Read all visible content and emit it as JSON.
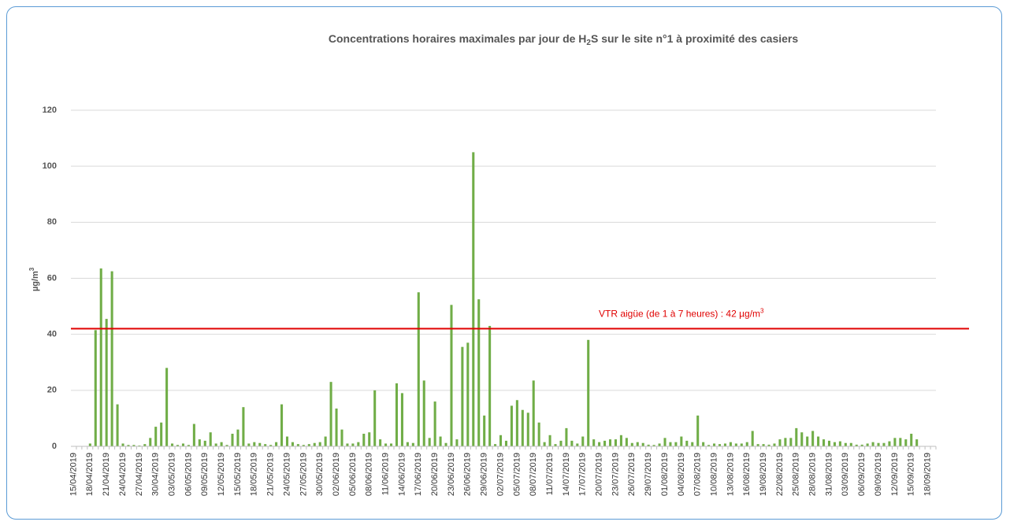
{
  "chart_data": {
    "type": "bar",
    "title_parts": [
      "Concentrations  horaires maximales par jour de H",
      "2",
      "S sur le site n°1 à proximité des casiers"
    ],
    "y_label_parts": [
      "µg/m",
      "3"
    ],
    "categories": [
      "15/04/2019",
      null,
      null,
      "18/04/2019",
      null,
      null,
      "21/04/2019",
      null,
      null,
      "24/04/2019",
      null,
      null,
      "27/04/2019",
      null,
      null,
      "30/04/2019",
      null,
      null,
      "03/05/2019",
      null,
      null,
      "06/05/2019",
      null,
      null,
      "09/05/2019",
      null,
      null,
      "12/05/2019",
      null,
      null,
      "15/05/2019",
      null,
      null,
      "18/05/2019",
      null,
      null,
      "21/05/2019",
      null,
      null,
      "24/05/2019",
      null,
      null,
      "27/05/2019",
      null,
      null,
      "30/05/2019",
      null,
      null,
      "02/06/2019",
      null,
      null,
      "05/06/2019",
      null,
      null,
      "08/06/2019",
      null,
      null,
      "11/06/2019",
      null,
      null,
      "14/06/2019",
      null,
      null,
      "17/06/2019",
      null,
      null,
      "20/06/2019",
      null,
      null,
      "23/06/2019",
      null,
      null,
      "26/06/2019",
      null,
      null,
      "29/06/2019",
      null,
      null,
      "02/07/2019",
      null,
      null,
      "05/07/2019",
      null,
      null,
      "08/07/2019",
      null,
      null,
      "11/07/2019",
      null,
      null,
      "14/07/2019",
      null,
      null,
      "17/07/2019",
      null,
      null,
      "20/07/2019",
      null,
      null,
      "23/07/2019",
      null,
      null,
      "26/07/2019",
      null,
      null,
      "29/07/2019",
      null,
      null,
      "01/08/2019",
      null,
      null,
      "04/08/2019",
      null,
      null,
      "07/08/2019",
      null,
      null,
      "10/08/2019",
      null,
      null,
      "13/08/2019",
      null,
      null,
      "16/08/2019",
      null,
      null,
      "19/08/2019",
      null,
      null,
      "22/08/2019",
      null,
      null,
      "25/08/2019",
      null,
      null,
      "28/08/2019",
      null,
      null,
      "31/08/2019",
      null,
      null,
      "03/09/2019",
      null,
      null,
      "06/09/2019",
      null,
      null,
      "09/09/2019",
      null,
      null,
      "12/09/2019",
      null,
      null,
      "15/09/2019",
      null,
      null,
      "18/09/2019",
      null
    ],
    "values": [
      0,
      0,
      0,
      1,
      41.5,
      63.5,
      45.5,
      62.5,
      15,
      1,
      0.5,
      0.5,
      0.3,
      0.8,
      3,
      7,
      8.5,
      28,
      1,
      0.5,
      1,
      0.5,
      8,
      2.5,
      2,
      5,
      1,
      1.5,
      0.5,
      4.5,
      6,
      14,
      1,
      1.5,
      1.2,
      0.8,
      0.5,
      1.5,
      15,
      3.5,
      1.5,
      0.8,
      0.5,
      0.8,
      1.2,
      1.5,
      3.5,
      23,
      13.5,
      6,
      1,
      1,
      1.5,
      4.5,
      5,
      20,
      2.5,
      1,
      1,
      22.5,
      19,
      1.5,
      1.2,
      55,
      23.5,
      3,
      16,
      3.5,
      1.2,
      50.5,
      2.5,
      35.5,
      37,
      105,
      52.5,
      11,
      43,
      0.8,
      4,
      2,
      14.5,
      16.5,
      13,
      12,
      23.5,
      8.5,
      1.5,
      4,
      0.8,
      2,
      6.5,
      2,
      1,
      3.5,
      38,
      2.5,
      1.5,
      2,
      2.5,
      2.5,
      4,
      3,
      1.2,
      1.5,
      1.2,
      0.6,
      0.5,
      1,
      3,
      1.5,
      1.5,
      3.5,
      2,
      1.5,
      11,
      1.5,
      0.5,
      1,
      0.8,
      1,
      1.5,
      1,
      1,
      1.5,
      5.5,
      0.8,
      0.8,
      0.6,
      1,
      2.5,
      3,
      3,
      6.5,
      5,
      3.5,
      5.5,
      3.5,
      2.5,
      2,
      1.5,
      1.8,
      1.2,
      1.2,
      0.6,
      0.6,
      1,
      1.5,
      1.2,
      1.2,
      1.8,
      3,
      3,
      2.5,
      4.5,
      2.5,
      0,
      0,
      0
    ],
    "color": "#70ad47",
    "ylim": [
      0,
      120
    ],
    "yticks": [
      0,
      20,
      40,
      60,
      80,
      100,
      120
    ],
    "grid": true,
    "reference_line": {
      "value": 42,
      "color": "#e00000",
      "label_parts": [
        "VTR aigüe  (de 1 à 7 heures) : 42 µg/m",
        "3"
      ]
    }
  }
}
